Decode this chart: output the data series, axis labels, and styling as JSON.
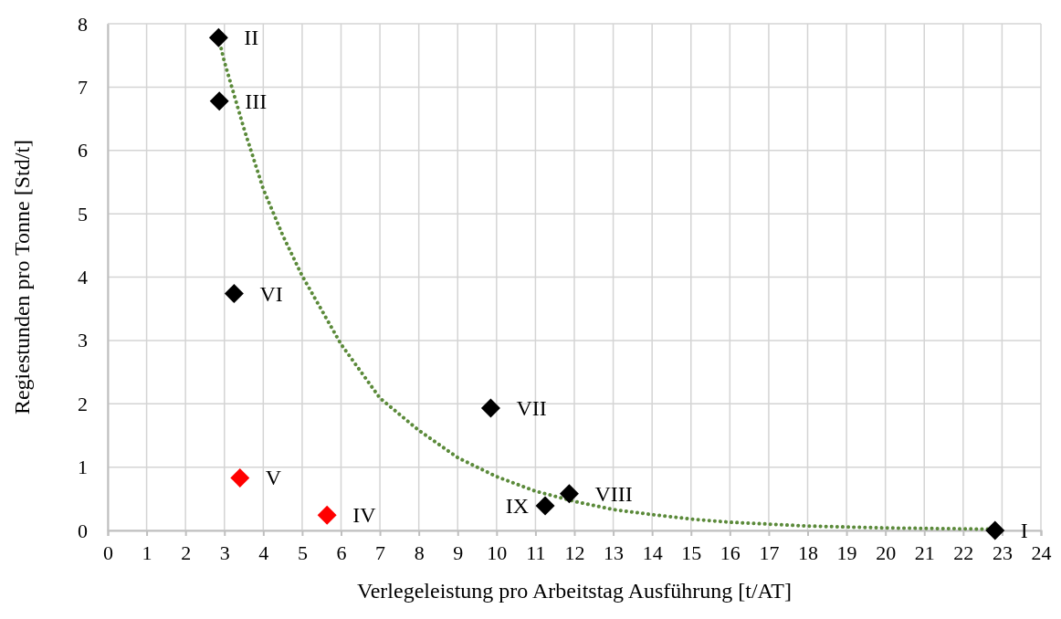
{
  "chart_data": {
    "type": "scatter",
    "xlabel": "Verlegeleistung pro Arbeitstag Ausführung [t/AT]",
    "ylabel": "Regiestunden pro Tonne [Std/t]",
    "xlim": [
      0,
      24
    ],
    "xticks": [
      0,
      1,
      2,
      3,
      4,
      5,
      6,
      7,
      8,
      9,
      10,
      11,
      12,
      13,
      14,
      15,
      16,
      17,
      18,
      19,
      20,
      21,
      22,
      23,
      24
    ],
    "ylim": [
      0,
      8
    ],
    "yticks": [
      0,
      1,
      2,
      3,
      4,
      5,
      6,
      7,
      8
    ],
    "grid": true,
    "marker": "diamond",
    "series": [
      {
        "type": "line",
        "color": "#5b8a3a",
        "line_style": "dotted",
        "marker": "none",
        "x": [
          2.85,
          3,
          3.5,
          4,
          4.5,
          5,
          6,
          7,
          8,
          9,
          10,
          11,
          12,
          13,
          14,
          15,
          16,
          18,
          20,
          22.82
        ],
        "values": [
          7.78,
          7.4,
          6.35,
          5.39,
          4.66,
          4.02,
          2.94,
          2.09,
          1.58,
          1.15,
          0.85,
          0.62,
          0.46,
          0.33,
          0.25,
          0.18,
          0.13,
          0.07,
          0.04,
          0.02
        ]
      },
      {
        "color": "#000000",
        "x": [
          22.82,
          2.85,
          2.87,
          3.25,
          9.85,
          11.87,
          11.25
        ],
        "values": [
          0,
          7.78,
          6.78,
          3.74,
          1.93,
          0.58,
          0.39
        ]
      },
      {
        "color": "#ff0000",
        "x": [
          5.64,
          3.4
        ],
        "values": [
          0.24,
          0.83
        ]
      }
    ],
    "annotations": [
      {
        "text": "I",
        "x": 22.82,
        "y": 0
      },
      {
        "text": "II",
        "x": 2.85,
        "y": 7.78
      },
      {
        "text": "III",
        "x": 2.87,
        "y": 6.78
      },
      {
        "text": "IV",
        "x": 5.64,
        "y": 0.24
      },
      {
        "text": "V",
        "x": 3.4,
        "y": 0.83
      },
      {
        "text": "VI",
        "x": 3.25,
        "y": 3.74
      },
      {
        "text": "VII",
        "x": 9.85,
        "y": 1.93
      },
      {
        "text": "VIII",
        "x": 11.87,
        "y": 0.58
      },
      {
        "text": "IX",
        "x": 11.25,
        "y": 0.39
      }
    ]
  }
}
